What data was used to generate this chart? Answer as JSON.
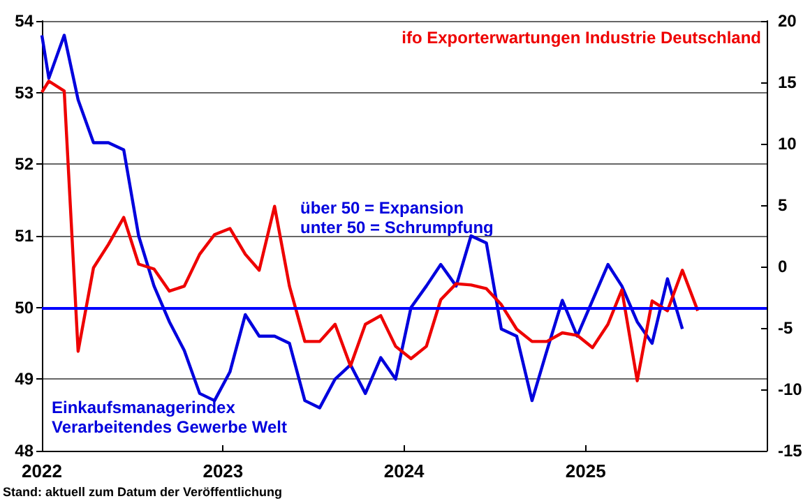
{
  "chart_data": {
    "type": "line",
    "xlim": [
      "2022-01-01",
      "2026-01-01"
    ],
    "xticks": [
      "2022",
      "2023",
      "2024",
      "2025"
    ],
    "ylim": [
      48,
      54
    ],
    "yticks": [
      48,
      49,
      50,
      51,
      52,
      53,
      54
    ],
    "y2lim": [
      -15,
      20
    ],
    "y2ticks": [
      -15,
      -10,
      -5,
      0,
      5,
      10,
      15,
      20
    ],
    "grid": "y",
    "marker": "none",
    "line_style": "solid",
    "ref_lines": [
      {
        "axis": "y",
        "value": 50,
        "label": null,
        "color": "#0000ff"
      }
    ],
    "annotations": [
      "über 50 = Expansion\nunter 50 = Schrumpfung",
      "Stand: aktuell zum Datum der Veröffentlichung"
    ],
    "series": [
      {
        "name": "Einkaufsmanagerindex\nVerarbeitendes Gewerbe Welt",
        "color": "#0000dd",
        "x": [
          "2022-01-01",
          "2022-01-15",
          "2022-02-15",
          "2022-03-15",
          "2022-04-15",
          "2022-05-15",
          "2022-06-15",
          "2022-07-15",
          "2022-08-15",
          "2022-09-15",
          "2022-10-15",
          "2022-11-15",
          "2022-12-15",
          "2023-01-15",
          "2023-02-15",
          "2023-03-15",
          "2023-04-15",
          "2023-05-15",
          "2023-06-15",
          "2023-07-15",
          "2023-08-15",
          "2023-09-15",
          "2023-10-15",
          "2023-11-15",
          "2023-12-15",
          "2024-01-15",
          "2024-02-15",
          "2024-03-15",
          "2024-04-15",
          "2024-05-15",
          "2024-06-15",
          "2024-07-15",
          "2024-08-15",
          "2024-09-15",
          "2024-10-15",
          "2024-11-15",
          "2024-12-15",
          "2025-01-15",
          "2025-02-15",
          "2025-03-15",
          "2025-04-15",
          "2025-05-15",
          "2025-06-15",
          "2025-07-15"
        ],
        "values": [
          53.8,
          53.2,
          53.8,
          52.9,
          52.3,
          52.3,
          52.2,
          51.0,
          50.3,
          49.8,
          49.4,
          48.8,
          48.7,
          49.1,
          49.9,
          49.6,
          49.6,
          49.5,
          48.7,
          48.6,
          49.0,
          49.2,
          48.8,
          49.3,
          49.0,
          50.0,
          50.3,
          50.6,
          50.3,
          51.0,
          50.9,
          49.7,
          49.6,
          48.7,
          49.4,
          50.1,
          49.6,
          50.1,
          50.6,
          50.3,
          49.8,
          49.5,
          50.4,
          49.7
        ]
      },
      {
        "name": "ifo Exporterwartungen Industrie Deutschland",
        "color": "#ee0000",
        "axis": "y2",
        "x": [
          "2022-01-01",
          "2022-01-15",
          "2022-02-15",
          "2022-03-15",
          "2022-04-15",
          "2022-05-15",
          "2022-06-15",
          "2022-07-15",
          "2022-08-15",
          "2022-09-15",
          "2022-10-15",
          "2022-11-15",
          "2022-12-15",
          "2023-01-15",
          "2023-02-15",
          "2023-03-15",
          "2023-04-15",
          "2023-05-15",
          "2023-06-15",
          "2023-07-15",
          "2023-08-15",
          "2023-09-15",
          "2023-10-15",
          "2023-11-15",
          "2023-12-15",
          "2024-01-15",
          "2024-02-15",
          "2024-03-15",
          "2024-04-15",
          "2024-05-15",
          "2024-06-15",
          "2024-07-15",
          "2024-08-15",
          "2024-09-15",
          "2024-10-15",
          "2024-11-15",
          "2024-12-15",
          "2025-01-15",
          "2025-02-15",
          "2025-03-15",
          "2025-04-15",
          "2025-05-15",
          "2025-06-15",
          "2025-07-15",
          "2025-08-15"
        ],
        "values": [
          14.2,
          15.1,
          14.3,
          -6.9,
          -0.1,
          1.8,
          4.0,
          0.2,
          -0.2,
          -2.0,
          -1.6,
          1.0,
          2.6,
          3.1,
          1.0,
          -0.3,
          4.9,
          -1.6,
          -6.1,
          -6.1,
          -4.7,
          -8.1,
          -4.7,
          -4.0,
          -6.5,
          -7.5,
          -6.5,
          -2.7,
          -1.4,
          -1.5,
          -1.8,
          -3.1,
          -5.1,
          -6.1,
          -6.1,
          -5.4,
          -5.6,
          -6.6,
          -4.7,
          -1.9,
          -9.3,
          -2.8,
          -3.6,
          -0.3,
          -3.6
        ]
      }
    ]
  }
}
